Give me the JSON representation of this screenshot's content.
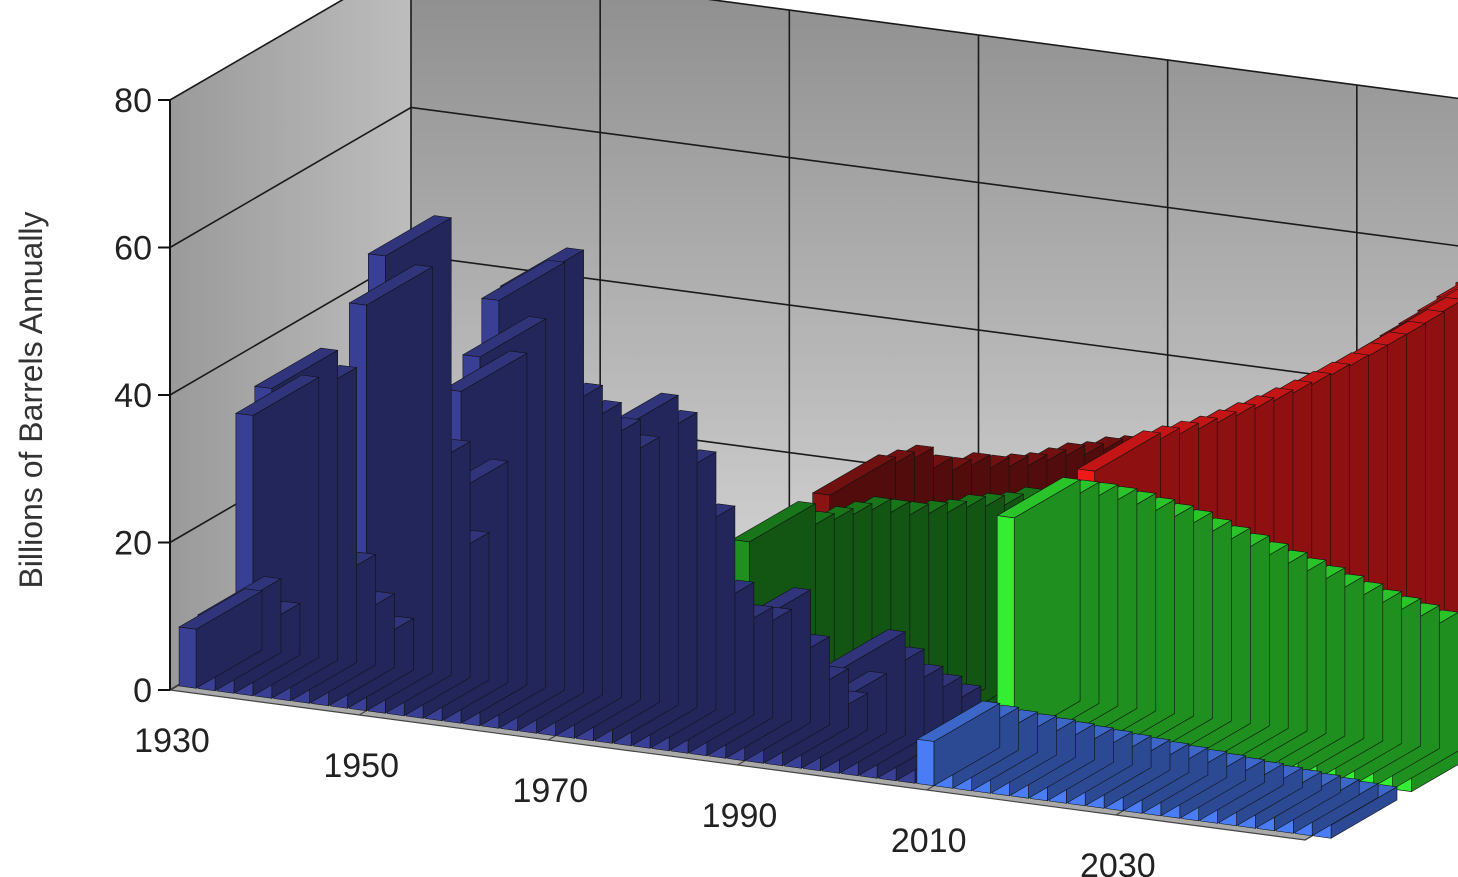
{
  "chart_data": {
    "type": "bar",
    "title": "",
    "ylabel": "Billions of Barrels Annually",
    "xlabel": "",
    "ylim": [
      0,
      80
    ],
    "yticks": [
      "0",
      "20",
      "40",
      "60",
      "80"
    ],
    "xticks": [
      "1930",
      "1950",
      "1970",
      "1990",
      "2010",
      "2030"
    ],
    "grid": true,
    "style": "3d-depth",
    "colors": {
      "discovery_past": "#3a3f96",
      "discovery_future": "#4a7cf5",
      "production_past": "#1f8f1f",
      "production_future": "#33ee33",
      "consumption_past": "#8a1414",
      "consumption_future": "#ee1a1a"
    },
    "series": [
      {
        "x": [
          1930,
          1932,
          1934,
          1936,
          1938,
          1940,
          1942,
          1944,
          1946,
          1948,
          1950,
          1952,
          1954,
          1956,
          1958,
          1960,
          1962,
          1964,
          1966,
          1968,
          1970,
          1972,
          1974,
          1976,
          1978,
          1980,
          1982,
          1984,
          1986,
          1988,
          1990,
          1992,
          1994,
          1996,
          1998,
          2000,
          2002,
          2004,
          2006
        ],
        "values": [
          8,
          10,
          7,
          38,
          42,
          40,
          15,
          10,
          7,
          55,
          62,
          32,
          20,
          30,
          45,
          50,
          58,
          60,
          42,
          40,
          38,
          36,
          42,
          40,
          35,
          28,
          18,
          15,
          15,
          18,
          12,
          8,
          5,
          8,
          14,
          12,
          10,
          9,
          8
        ]
      },
      {
        "x": [
          2008,
          2010,
          2012,
          2014,
          2016,
          2018,
          2020,
          2022,
          2024,
          2026,
          2028,
          2030,
          2032,
          2034,
          2036,
          2038,
          2040,
          2042,
          2044,
          2046,
          2048,
          2050
        ],
        "values": [
          6,
          5.8,
          5.5,
          5.3,
          5.1,
          4.9,
          4.7,
          4.5,
          4.3,
          4.1,
          3.9,
          3.7,
          3.5,
          3.3,
          3.1,
          2.9,
          2.7,
          2.5,
          2.3,
          2.1,
          1.9,
          1.8
        ]
      },
      {
        "x": [
          1980,
          1982,
          1984,
          1986,
          1988,
          1990,
          1992,
          1994,
          1996,
          1998,
          2000,
          2002,
          2004,
          2006
        ],
        "values": [
          22,
          21,
          22,
          23,
          24,
          24,
          24,
          24.5,
          25,
          26,
          26.5,
          27,
          28,
          28
        ]
      },
      {
        "x": [
          2008,
          2010,
          2012,
          2014,
          2016,
          2018,
          2020,
          2022,
          2024,
          2026,
          2028,
          2030,
          2032,
          2034,
          2036,
          2038,
          2040,
          2042,
          2044,
          2046,
          2048,
          2050
        ],
        "values": [
          30,
          30,
          30,
          29.8,
          29.5,
          29,
          28.5,
          28,
          27.2,
          26.5,
          25.8,
          25,
          24.2,
          23.5,
          22.8,
          22,
          21.3,
          20.6,
          20,
          19.4,
          18.8,
          18.3
        ]
      },
      {
        "x": [
          1980,
          1982,
          1984,
          1986,
          1988,
          1990,
          1992,
          1994,
          1996,
          1998,
          2000,
          2002,
          2004,
          2006
        ],
        "values": [
          22,
          23,
          24,
          23,
          23,
          24,
          24,
          24.5,
          25,
          26,
          27,
          27.5,
          28.5,
          29
        ]
      },
      {
        "x": [
          2008,
          2010,
          2012,
          2014,
          2016,
          2018,
          2020,
          2022,
          2024,
          2026,
          2028,
          2030,
          2032,
          2034,
          2036,
          2038,
          2040,
          2042,
          2044,
          2046,
          2048,
          2050
        ],
        "values": [
          30,
          31,
          32,
          33,
          34.2,
          35.5,
          36.8,
          38.2,
          39.6,
          41.1,
          42.7,
          44.3,
          46,
          47.8,
          49.6,
          51.5,
          53.5,
          55.5,
          57.6,
          59.8,
          62,
          64.5
        ]
      }
    ]
  }
}
